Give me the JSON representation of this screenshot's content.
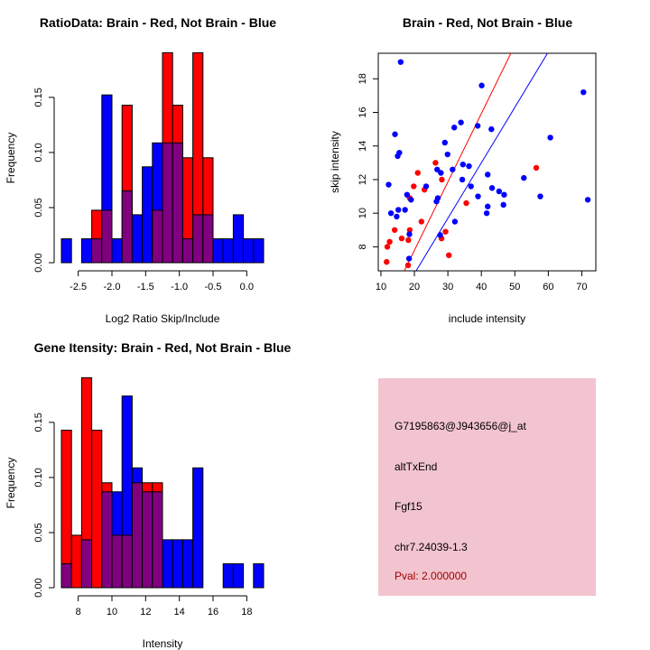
{
  "colors": {
    "red": "#ff0000",
    "blue": "#0000ff",
    "overlap": "#800080",
    "panel": "#f2c4cf",
    "pval": "#a00000"
  },
  "chart_data": [
    {
      "type": "bar",
      "title": "RatioData: Brain - Red, Not Brain - Blue",
      "xlabel": "Log2 Ratio Skip/Include",
      "ylabel": "Frequency",
      "bin_start": -2.75,
      "bin_width": 0.15,
      "xticks": [
        -2.5,
        -2.0,
        -1.5,
        -1.0,
        -0.5,
        0.0
      ],
      "xtick_labels": [
        "-2.5",
        "-2.0",
        "-1.5",
        "-1.0",
        "-0.5",
        "0.0"
      ],
      "yticks": [
        0,
        0.05,
        0.1,
        0.15
      ],
      "ytick_labels": [
        "0.00",
        "0.05",
        "0.10",
        "0.15"
      ],
      "xlim": [
        -2.75,
        0.25
      ],
      "ylim": [
        0,
        0.19
      ],
      "series": [
        {
          "name": "Brain",
          "color": "red",
          "values": [
            0,
            0,
            0,
            0.0476,
            0.0476,
            0,
            0.1429,
            0,
            0,
            0.0476,
            0.1905,
            0.1429,
            0.0952,
            0.1905,
            0.0952,
            0,
            0,
            0,
            0,
            0
          ]
        },
        {
          "name": "Not Brain",
          "color": "blue",
          "values": [
            0.0217,
            0,
            0.0217,
            0.0217,
            0.1522,
            0.0217,
            0.0652,
            0.0435,
            0.087,
            0.1087,
            0.1087,
            0.1087,
            0.0217,
            0.0435,
            0.0435,
            0.0217,
            0.0217,
            0.0435,
            0.0217,
            0.0217
          ]
        }
      ]
    },
    {
      "type": "scatter",
      "title": "Brain - Red, Not Brain - Blue",
      "xlabel": "include intensity",
      "ylabel": "skip intensity",
      "xlim": [
        9.2,
        74.2
      ],
      "ylim": [
        6.57,
        19.52
      ],
      "xticks": [
        10,
        20,
        30,
        40,
        50,
        60,
        70
      ],
      "xtick_labels": [
        "10",
        "20",
        "30",
        "40",
        "50",
        "60",
        "70"
      ],
      "yticks": [
        8,
        10,
        12,
        14,
        16,
        18
      ],
      "ytick_labels": [
        "8",
        "10",
        "12",
        "14",
        "16",
        "18"
      ],
      "series": [
        {
          "name": "Brain",
          "color": "red",
          "fit": {
            "slope": 0.407,
            "intercept": -0.35
          },
          "points": [
            [
              11.7,
              7.1
            ],
            [
              11.9,
              8.0
            ],
            [
              12.6,
              8.3
            ],
            [
              14.1,
              9.0
            ],
            [
              16.2,
              8.5
            ],
            [
              18.2,
              8.4
            ],
            [
              18.6,
              9.0
            ],
            [
              18.1,
              6.9
            ],
            [
              22.1,
              9.5
            ],
            [
              19.8,
              11.6
            ],
            [
              21.0,
              12.4
            ],
            [
              23.0,
              11.4
            ],
            [
              18.6,
              10.9
            ],
            [
              26.3,
              13.0
            ],
            [
              28.2,
              12.0
            ],
            [
              28.1,
              8.5
            ],
            [
              29.3,
              8.9
            ],
            [
              30.3,
              7.5
            ],
            [
              35.5,
              10.6
            ],
            [
              56.4,
              12.7
            ]
          ]
        },
        {
          "name": "Not Brain",
          "color": "blue",
          "fit": {
            "slope": 0.33,
            "intercept": -0.2
          },
          "points": [
            [
              15.9,
              19.0
            ],
            [
              40.1,
              17.6
            ],
            [
              70.5,
              17.2
            ],
            [
              14.2,
              14.7
            ],
            [
              33.9,
              15.4
            ],
            [
              31.9,
              15.1
            ],
            [
              38.9,
              15.2
            ],
            [
              43.0,
              15.0
            ],
            [
              60.6,
              14.5
            ],
            [
              15.5,
              13.6
            ],
            [
              15.0,
              13.4
            ],
            [
              29.1,
              14.2
            ],
            [
              29.9,
              13.5
            ],
            [
              34.5,
              12.9
            ],
            [
              36.3,
              12.8
            ],
            [
              26.8,
              12.6
            ],
            [
              27.9,
              12.4
            ],
            [
              31.4,
              12.6
            ],
            [
              41.9,
              12.3
            ],
            [
              34.3,
              12.0
            ],
            [
              52.7,
              12.1
            ],
            [
              12.3,
              11.7
            ],
            [
              23.5,
              11.6
            ],
            [
              36.9,
              11.6
            ],
            [
              43.2,
              11.5
            ],
            [
              45.3,
              11.3
            ],
            [
              46.8,
              11.1
            ],
            [
              57.6,
              11.0
            ],
            [
              39.0,
              11.0
            ],
            [
              17.8,
              11.1
            ],
            [
              19.0,
              10.8
            ],
            [
              71.8,
              10.8
            ],
            [
              27.0,
              10.9
            ],
            [
              26.6,
              10.7
            ],
            [
              41.9,
              10.4
            ],
            [
              46.6,
              10.5
            ],
            [
              41.6,
              10.0
            ],
            [
              15.2,
              10.2
            ],
            [
              17.2,
              10.2
            ],
            [
              13.0,
              10.0
            ],
            [
              14.7,
              9.8
            ],
            [
              32.1,
              9.5
            ],
            [
              18.5,
              8.75
            ],
            [
              27.7,
              8.7
            ],
            [
              18.4,
              7.3
            ]
          ]
        }
      ]
    },
    {
      "type": "bar",
      "title": "Gene Itensity: Brain - Red, Not Brain - Blue",
      "xlabel": "Intensity",
      "ylabel": "Frequency",
      "bin_start": 7,
      "bin_width": 0.6,
      "xticks": [
        8,
        10,
        12,
        14,
        16,
        18
      ],
      "xtick_labels": [
        "8",
        "10",
        "12",
        "14",
        "16",
        "18"
      ],
      "yticks": [
        0,
        0.05,
        0.1,
        0.15
      ],
      "ytick_labels": [
        "0.00",
        "0.05",
        "0.10",
        "0.15"
      ],
      "xlim": [
        7,
        19
      ],
      "ylim": [
        0,
        0.19
      ],
      "series": [
        {
          "name": "Brain",
          "color": "red",
          "values": [
            0.1429,
            0.0476,
            0.1905,
            0.1429,
            0.0952,
            0.0476,
            0.0476,
            0.0952,
            0.0952,
            0.0952,
            0,
            0,
            0,
            0,
            0,
            0,
            0,
            0,
            0,
            0
          ]
        },
        {
          "name": "Not Brain",
          "color": "blue",
          "values": [
            0.0217,
            0,
            0.0435,
            0,
            0.087,
            0.087,
            0.1739,
            0.1087,
            0.087,
            0.087,
            0.0435,
            0.0435,
            0.0435,
            0.1087,
            0,
            0,
            0.0217,
            0.0217,
            0,
            0.0217
          ]
        }
      ]
    }
  ],
  "info": {
    "probe": "G7195863@J943656@j_at",
    "event": "altTxEnd",
    "gene": "Fgf15",
    "location": "chr7.24039-1.3",
    "pval": "Pval: 2.000000"
  }
}
